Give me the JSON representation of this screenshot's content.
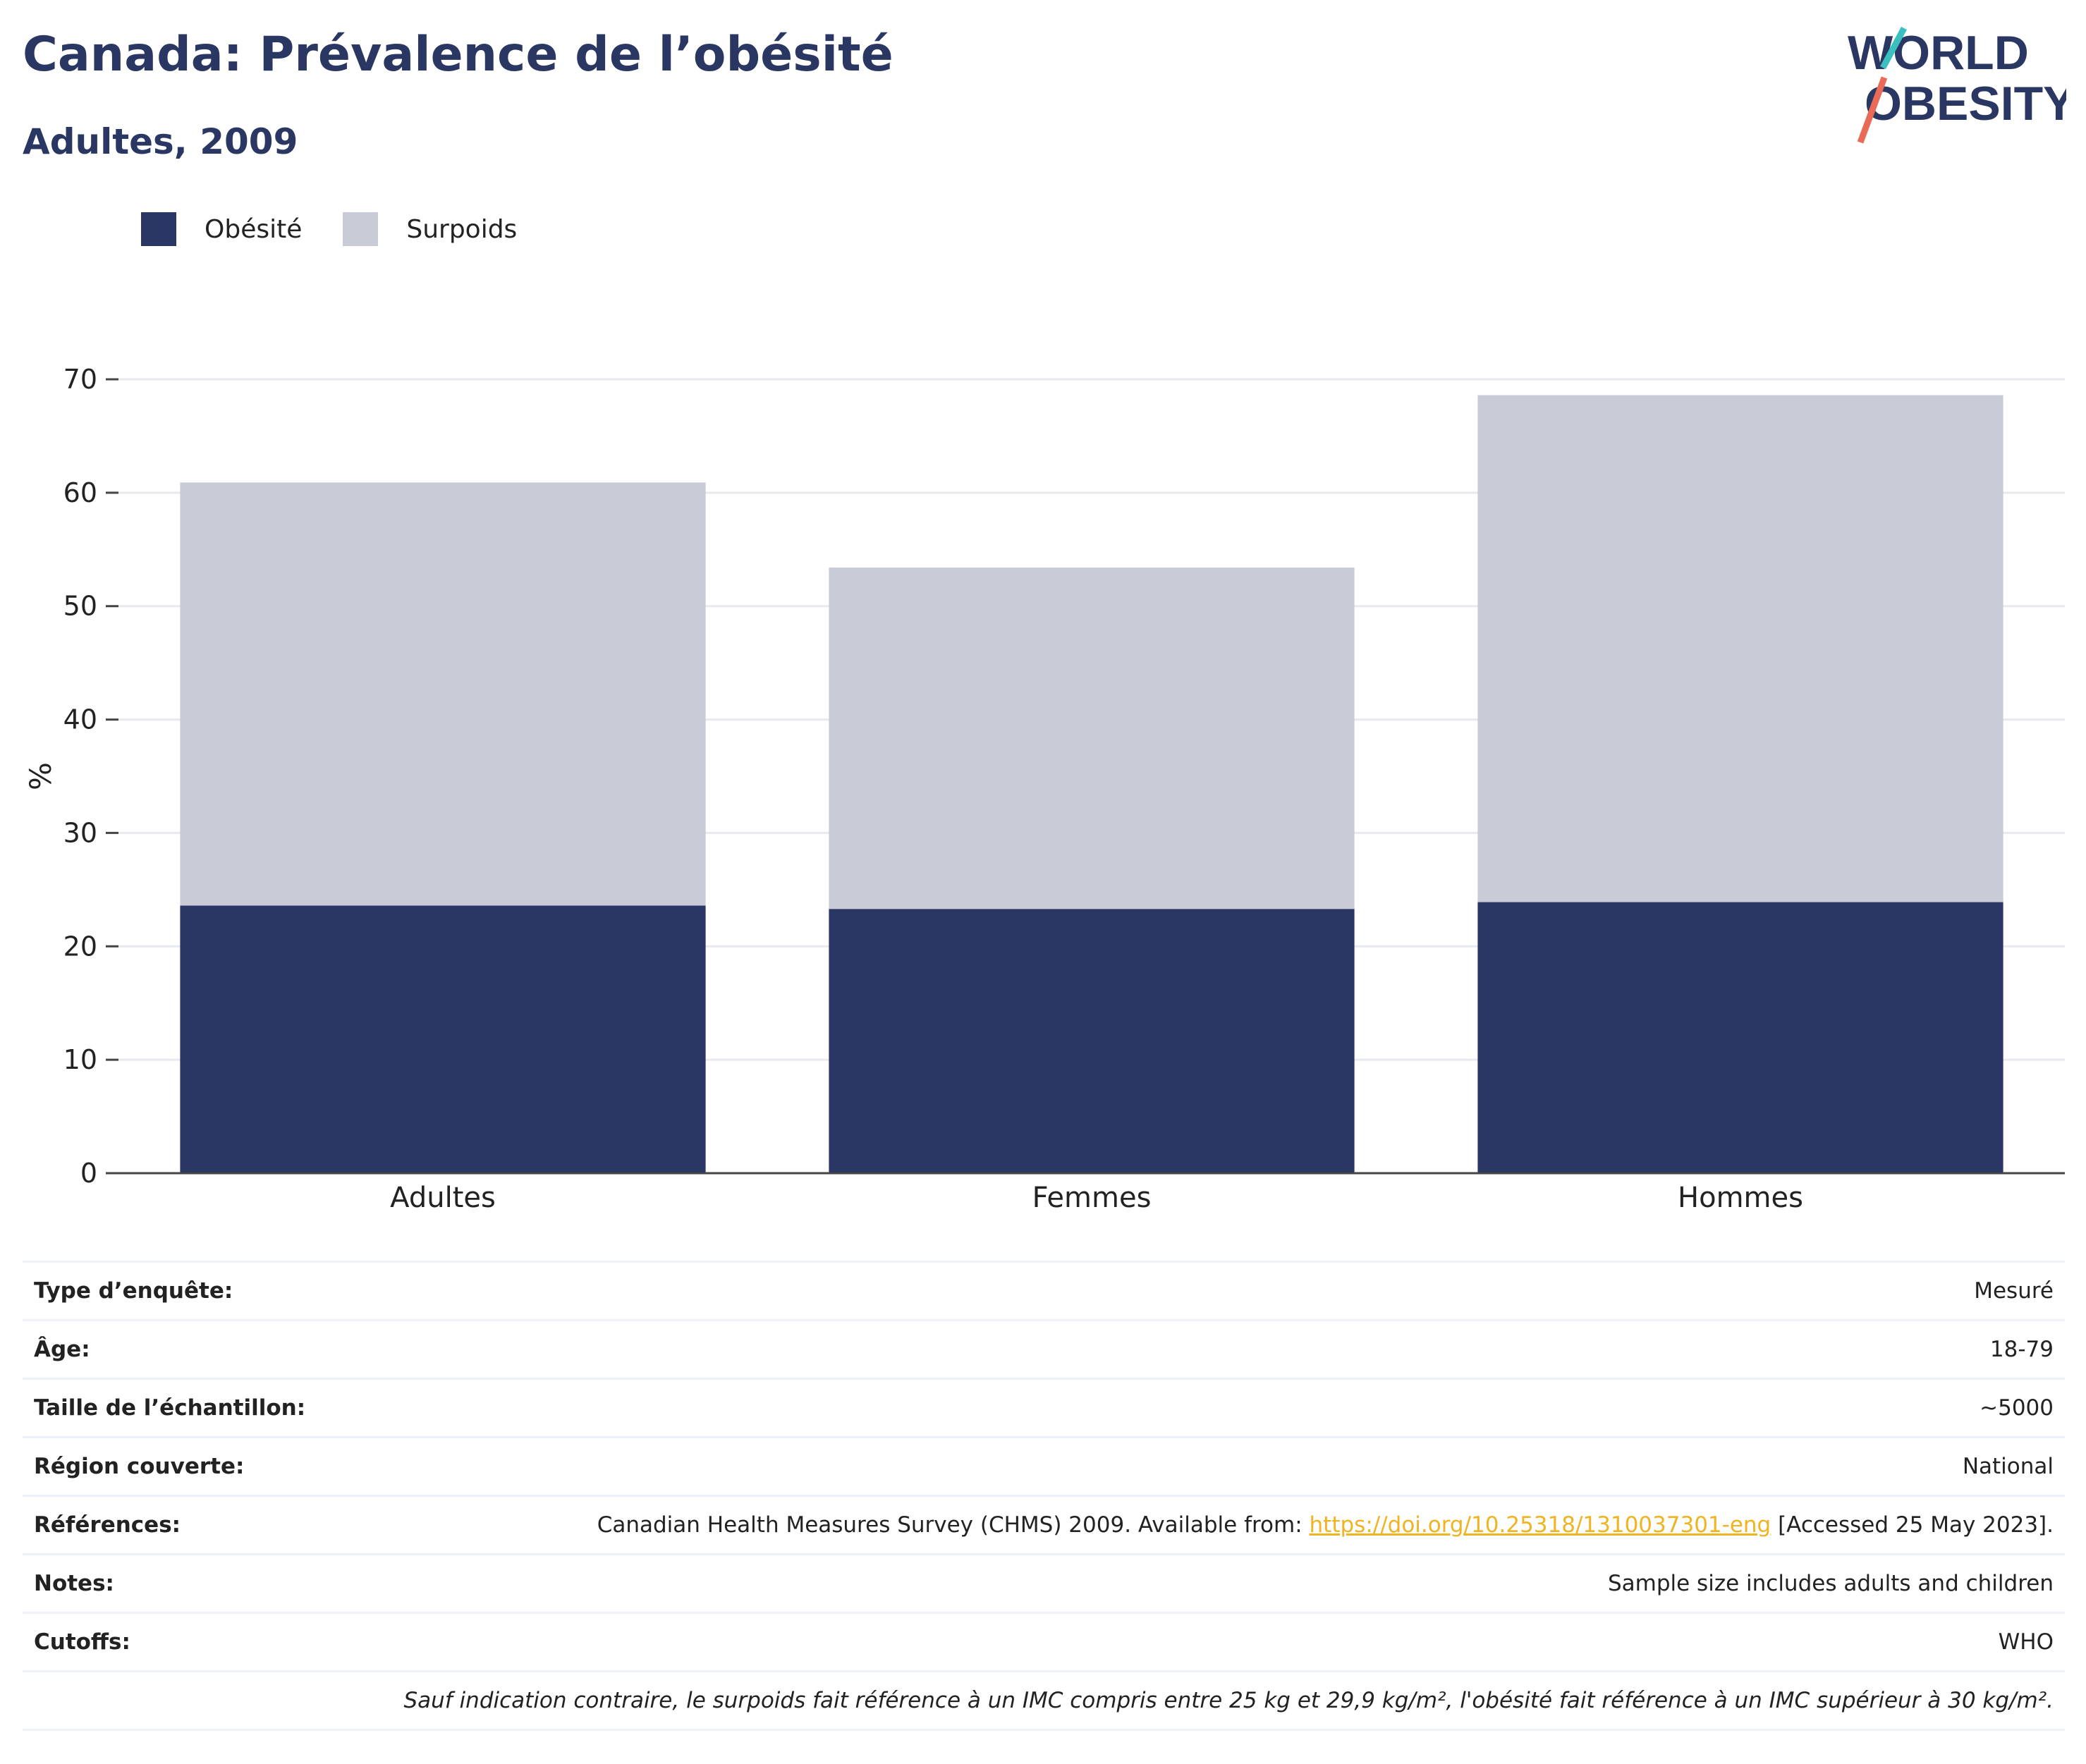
{
  "header": {
    "title": "Canada: Prévalence de l’obésité",
    "subtitle": "Adultes, 2009"
  },
  "logo": {
    "line1": "WORLD",
    "line2": "OBESITY"
  },
  "legend": [
    {
      "label": "Obésité",
      "color": "#2a3663"
    },
    {
      "label": "Surpoids",
      "color": "#c9cbd6"
    }
  ],
  "chart_data": {
    "type": "bar",
    "stacked": true,
    "categories": [
      "Adultes",
      "Femmes",
      "Hommes"
    ],
    "series": [
      {
        "name": "Obésité",
        "color": "#2a3663",
        "values": [
          23.6,
          23.3,
          23.9
        ]
      },
      {
        "name": "Surpoids",
        "color": "#c9cbd6",
        "values": [
          37.3,
          30.1,
          44.7
        ]
      }
    ],
    "ylabel": "%",
    "ylim": [
      0,
      70
    ],
    "yticks": [
      0,
      10,
      20,
      30,
      40,
      50,
      60,
      70
    ],
    "grid": true,
    "legend_position": "top-left"
  },
  "meta": {
    "rows": [
      {
        "key": "Type d’enquête:",
        "value": "Mesuré"
      },
      {
        "key": "Âge:",
        "value": "18-79"
      },
      {
        "key": "Taille de l’échantillon:",
        "value": "~5000"
      },
      {
        "key": "Région couverte:",
        "value": "National"
      },
      {
        "key": "Notes:",
        "value": "Sample size includes adults and children"
      },
      {
        "key": "Cutoffs:",
        "value": "WHO"
      }
    ],
    "references": {
      "key": "Références:",
      "prefix": "Canadian Health Measures Survey (CHMS) 2009. Available from: ",
      "link": "https://doi.org/10.25318/1310037301-eng",
      "suffix": " [Accessed 25 May 2023]."
    },
    "footnote": "Sauf indication contraire, le surpoids fait référence à un IMC compris entre 25 kg et 29,9 kg/m², l'obésité fait référence à un IMC supérieur à 30 kg/m²."
  }
}
